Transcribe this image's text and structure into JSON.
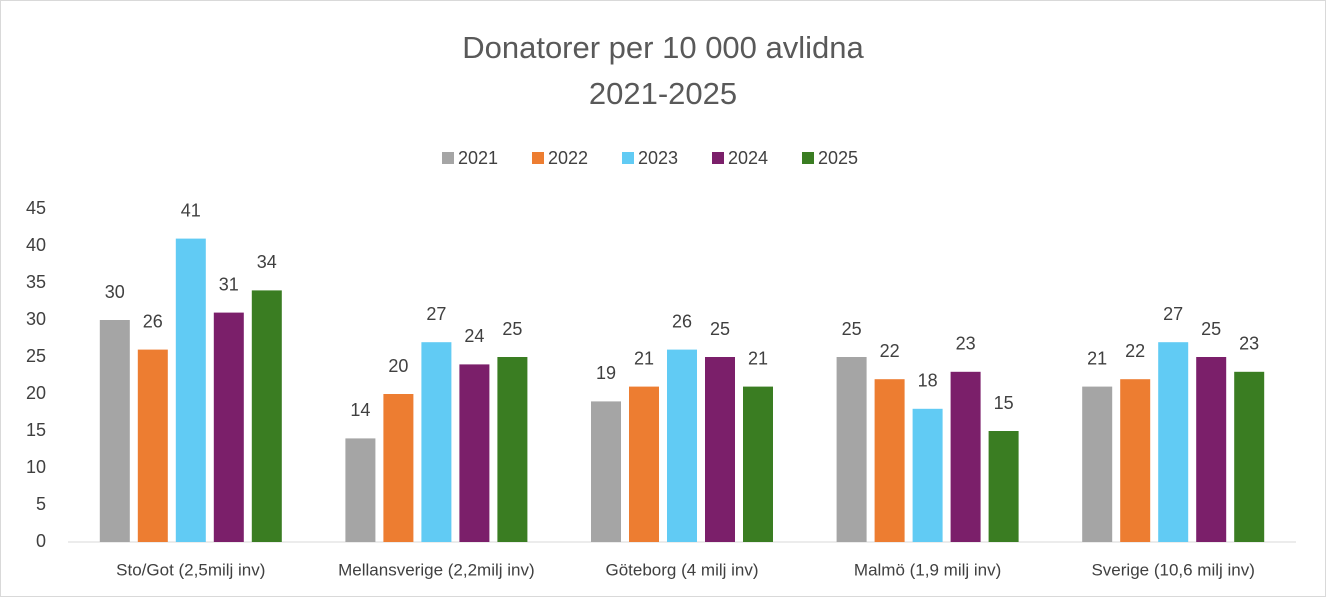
{
  "chart_data": {
    "type": "bar",
    "title": "Donatorer per 10 000 avlidna",
    "subtitle": "2021-2025",
    "categories": [
      "Sto/Got (2,5milj inv)",
      "Mellansverige (2,2milj inv)",
      "Göteborg (4 milj inv)",
      "Malmö (1,9 milj inv)",
      "Sverige (10,6 milj inv)"
    ],
    "series": [
      {
        "name": "2021",
        "color": "#a5a5a5",
        "values": [
          30,
          14,
          19,
          25,
          21
        ]
      },
      {
        "name": "2022",
        "color": "#ed7d31",
        "values": [
          26,
          20,
          21,
          22,
          22
        ]
      },
      {
        "name": "2023",
        "color": "#61cbf4",
        "values": [
          41,
          27,
          26,
          18,
          27
        ]
      },
      {
        "name": "2024",
        "color": "#7b1f6a",
        "values": [
          31,
          24,
          25,
          23,
          25
        ]
      },
      {
        "name": "2025",
        "color": "#3a7d22",
        "values": [
          34,
          25,
          21,
          15,
          23
        ]
      }
    ],
    "ylim": [
      0,
      45
    ],
    "yticks": [
      0,
      5,
      10,
      15,
      20,
      25,
      30,
      35,
      40,
      45
    ],
    "grid": false,
    "legend": "top"
  }
}
